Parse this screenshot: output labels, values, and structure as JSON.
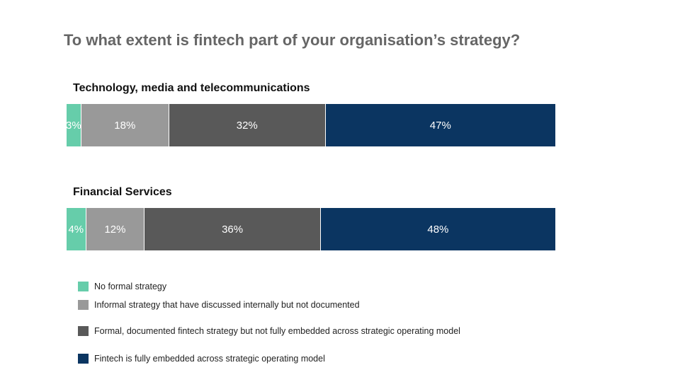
{
  "title": "To what extent is fintech part of your organisation’s strategy?",
  "chart_data": {
    "type": "bar",
    "orientation": "horizontal",
    "stacked": true,
    "title": "To what extent is fintech part of your organisation’s strategy?",
    "categories": [
      "Technology, media and telecommunications",
      "Financial Services"
    ],
    "series": [
      {
        "name": "No formal strategy",
        "color": "#66cdaa",
        "values": [
          3,
          4
        ],
        "labels": [
          "3%",
          "4%"
        ]
      },
      {
        "name": "Informal strategy that have discussed internally but not documented",
        "color": "#999999",
        "values": [
          18,
          12
        ],
        "labels": [
          "18%",
          "12%"
        ]
      },
      {
        "name": "Formal, documented fintech strategy but not fully embedded across strategic operating model",
        "color": "#595959",
        "values": [
          32,
          36
        ],
        "labels": [
          "32%",
          "36%"
        ]
      },
      {
        "name": "Fintech is fully embedded across strategic operating model",
        "color": "#0b3561",
        "values": [
          47,
          48
        ],
        "labels": [
          "47%",
          "48%"
        ]
      }
    ],
    "xlim": [
      0,
      100
    ],
    "legend_position": "bottom-left",
    "grid": false
  }
}
